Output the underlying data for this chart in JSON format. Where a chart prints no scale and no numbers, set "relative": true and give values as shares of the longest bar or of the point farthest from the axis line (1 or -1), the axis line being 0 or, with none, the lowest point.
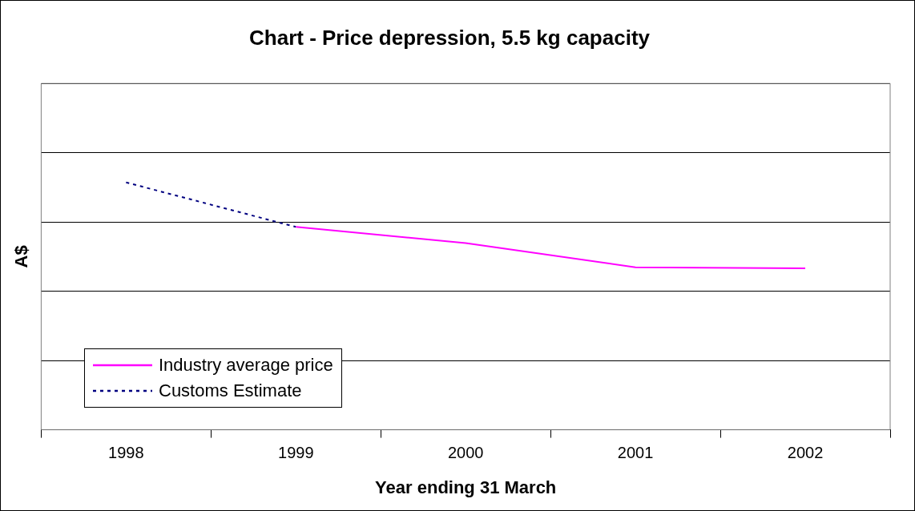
{
  "chart_data": {
    "type": "line",
    "title": "Chart - Price depression, 5.5 kg capacity",
    "xlabel": "Year ending 31 March",
    "ylabel": "A$",
    "relative": true,
    "grid": "y",
    "legend": "bottom left",
    "marker": "none",
    "categories": [
      "1998",
      "1999",
      "2000",
      "2001",
      "2002"
    ],
    "series": [
      {
        "name": "Industry average price",
        "color": "#ff00ff",
        "line_style": "solid",
        "values": [
          null,
          0.82,
          0.755,
          0.657,
          0.653
        ]
      },
      {
        "name": "Customs Estimate",
        "color": "#000080",
        "line_style": "dotted",
        "values": [
          1,
          0.82,
          null,
          null,
          null
        ]
      }
    ]
  }
}
